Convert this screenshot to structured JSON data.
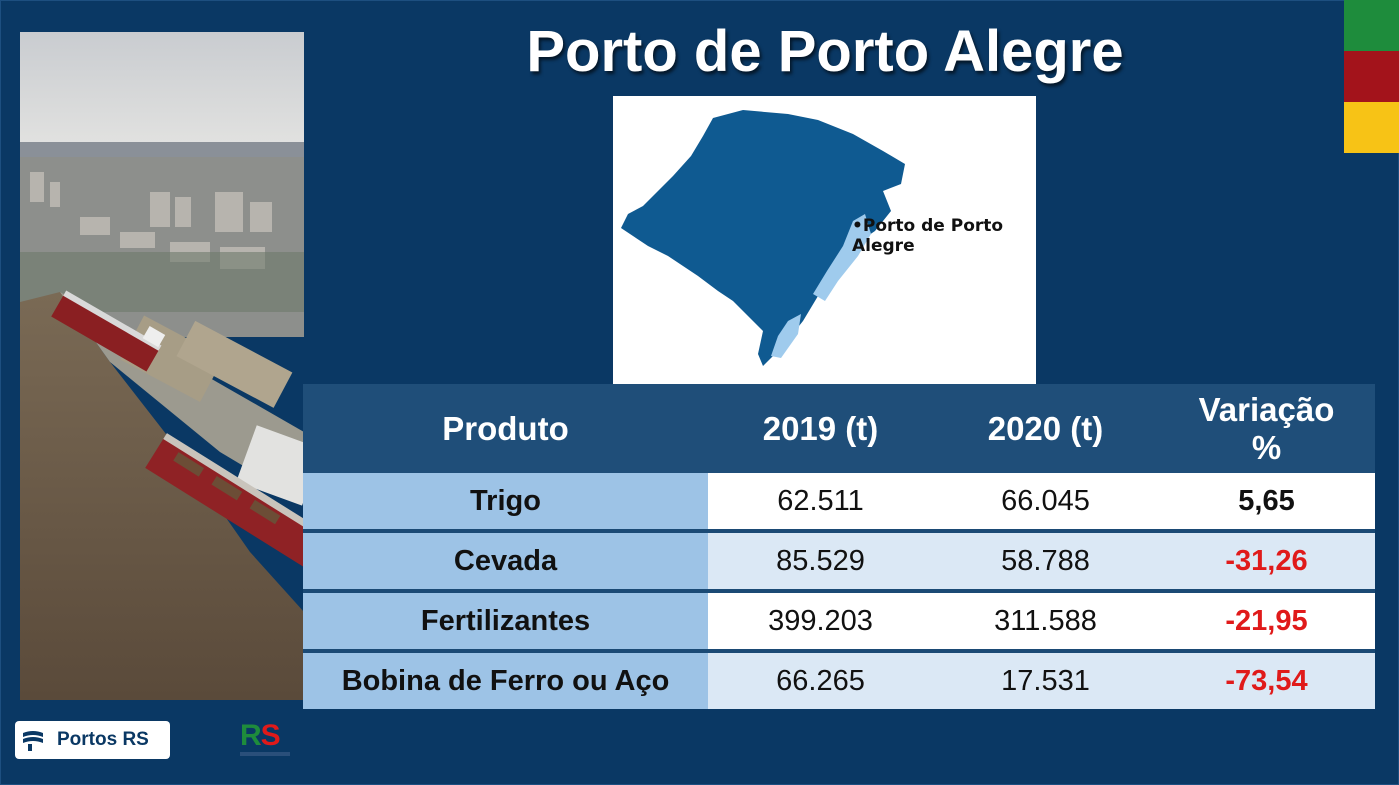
{
  "title": "Porto de Porto Alegre",
  "map": {
    "label": "•Porto de Porto Alegre"
  },
  "table": {
    "headers": [
      "Produto",
      "2019 (t)",
      "2020 (t)",
      "Variação %"
    ],
    "rows": [
      {
        "produto": "Trigo",
        "y2019": "62.511",
        "y2020": "66.045",
        "variacao": "5,65",
        "variacao_color": "#111111"
      },
      {
        "produto": "Cevada",
        "y2019": "85.529",
        "y2020": "58.788",
        "variacao": "-31,26",
        "variacao_color": "#e01a1a"
      },
      {
        "produto": "Fertilizantes",
        "y2019": "399.203",
        "y2020": "311.588",
        "variacao": "-21,95",
        "variacao_color": "#e01a1a"
      },
      {
        "produto": "Bobina de Ferro ou Aço",
        "y2019": "66.265",
        "y2020": "17.531",
        "variacao": "-73,54",
        "variacao_color": "#e01a1a"
      }
    ]
  },
  "logos": {
    "portos": "Portos RS",
    "rs": "RS"
  },
  "colors": {
    "background": "#0a3864",
    "header": "#1f4e79",
    "negative": "#e01a1a"
  },
  "icons": {
    "portos_mark": "wave-flag-icon"
  }
}
